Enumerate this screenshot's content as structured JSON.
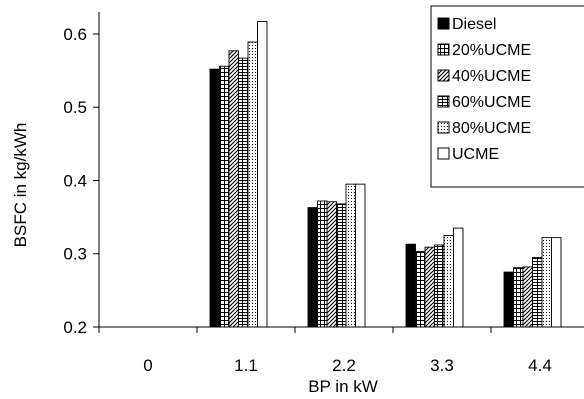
{
  "chart_data": {
    "type": "bar",
    "xlabel": "BP in kW",
    "ylabel": "BSFC in kg/kWh",
    "ylim": [
      0.2,
      0.63
    ],
    "yticks": [
      "0.2",
      "0.3",
      "0.4",
      "0.5",
      "0.6"
    ],
    "categories": [
      "0",
      "1.1",
      "2.2",
      "3.3",
      "4.4"
    ],
    "grid": false,
    "legend_position": "top-right",
    "series": [
      {
        "name": "Diesel",
        "values": [
          null,
          0.552,
          0.363,
          0.313,
          0.275
        ],
        "pattern": "solid"
      },
      {
        "name": "20%UCME",
        "values": [
          null,
          0.556,
          0.372,
          0.303,
          0.281
        ],
        "pattern": "grid"
      },
      {
        "name": "40%UCME",
        "values": [
          null,
          0.577,
          0.371,
          0.309,
          0.282
        ],
        "pattern": "diagonal"
      },
      {
        "name": "60%UCME",
        "values": [
          null,
          0.567,
          0.368,
          0.312,
          0.295
        ],
        "pattern": "hgrid"
      },
      {
        "name": "80%UCME",
        "values": [
          null,
          0.589,
          0.395,
          0.325,
          0.322
        ],
        "pattern": "dots"
      },
      {
        "name": "UCME",
        "values": [
          null,
          0.617,
          0.395,
          0.335,
          0.322
        ],
        "pattern": "white"
      }
    ]
  }
}
